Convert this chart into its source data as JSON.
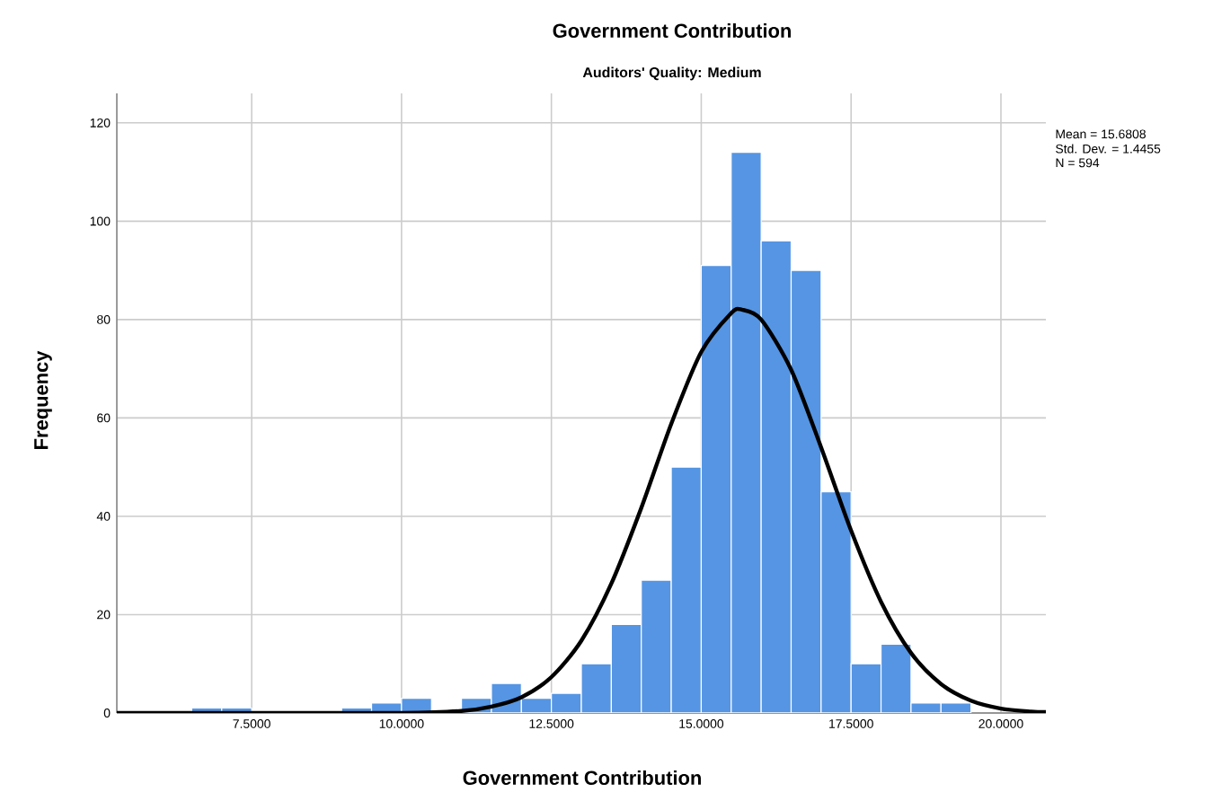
{
  "chart_data": {
    "type": "histogram",
    "title": "Government Contribution",
    "subtitle": "Auditors' Quality: Medium",
    "xlabel": "Government Contribution",
    "ylabel": "Frequency",
    "annotations": [
      "Mean = 15.6808",
      "Std. Dev. = 1.4455",
      "N = 594"
    ],
    "bins": [
      6.5,
      7.0,
      7.5,
      8.0,
      8.5,
      9.0,
      9.5,
      10.0,
      10.5,
      11.0,
      11.5,
      12.0,
      12.5,
      13.0,
      13.5,
      14.0,
      14.5,
      15.0,
      15.5,
      16.0,
      16.5,
      17.0,
      17.5,
      18.0,
      18.5,
      19.0,
      19.5
    ],
    "values": [
      1,
      1,
      0,
      0,
      0,
      1,
      2,
      3,
      0,
      3,
      6,
      3,
      4,
      10,
      18,
      27,
      50,
      91,
      114,
      96,
      90,
      45,
      10,
      14,
      2,
      2
    ],
    "color": "#5595e3",
    "series": [
      {
        "type": "line",
        "color": "#000000",
        "x": [
          5.25,
          8,
          10,
          11,
          11.5,
          12,
          12.5,
          13,
          13.5,
          14,
          14.5,
          15,
          15.5,
          15.68,
          16,
          16.5,
          17,
          17.5,
          18,
          18.5,
          19,
          19.5,
          20,
          20.5,
          20.75
        ],
        "values": [
          0,
          0,
          0,
          0.4,
          1.3,
          3.2,
          7.3,
          14.7,
          26.3,
          41.7,
          58.8,
          73.4,
          81.3,
          82,
          80,
          69.8,
          54,
          37.1,
          22.6,
          12.2,
          5.9,
          2.5,
          0.9,
          0.3,
          0.2
        ]
      }
    ],
    "xlim": [
      5.25,
      20.75
    ],
    "ylim": [
      0,
      126
    ],
    "xticks": [
      {
        "value": 7.5,
        "label": "7.5000"
      },
      {
        "value": 10,
        "label": "10.0000"
      },
      {
        "value": 12.5,
        "label": "12.5000"
      },
      {
        "value": 15,
        "label": "15.0000"
      },
      {
        "value": 17.5,
        "label": "17.5000"
      },
      {
        "value": 20,
        "label": "20.0000"
      }
    ],
    "yticks": [
      0,
      20,
      40,
      60,
      80,
      100,
      120
    ],
    "grid": true
  }
}
